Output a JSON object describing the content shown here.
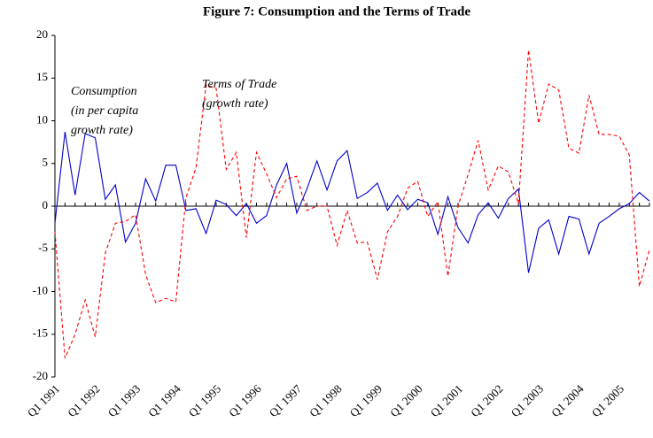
{
  "chart_data": {
    "type": "line",
    "title": "Figure 7: Consumption and the Terms of Trade",
    "categories": [
      "Q1 1991",
      null,
      null,
      null,
      "Q1 1992",
      null,
      null,
      null,
      "Q1 1993",
      null,
      null,
      null,
      "Q1 1994",
      null,
      null,
      null,
      "Q1 1995",
      null,
      null,
      null,
      "Q1 1996",
      null,
      null,
      null,
      "Q1 1997",
      null,
      null,
      null,
      "Q1 1998",
      null,
      null,
      null,
      "Q1 1999",
      null,
      null,
      null,
      "Q1 2000",
      null,
      null,
      null,
      "Q1 2001",
      null,
      null,
      null,
      "Q1 2002",
      null,
      null,
      null,
      "Q1 2003",
      null,
      null,
      null,
      "Q1 2004",
      null,
      null,
      null,
      "Q1 2005",
      null,
      null,
      null
    ],
    "series": [
      {
        "name": "Consumption",
        "color": "#0000cc",
        "dash": false,
        "values": [
          -2,
          8.7,
          1.3,
          8.5,
          8,
          0.8,
          2.5,
          -4.2,
          -2,
          3.2,
          0.6,
          4.8,
          4.8,
          -0.5,
          -0.3,
          -3.2,
          0.7,
          0.2,
          -1.1,
          0.3,
          -2,
          -1.1,
          2.5,
          5,
          -0.8,
          2,
          5.3,
          1.9,
          5.3,
          6.5,
          0.9,
          1.6,
          2.7,
          -0.5,
          1.3,
          -0.4,
          0.8,
          0.4,
          -3.3,
          1.1,
          -2.5,
          -4.3,
          -1,
          0.4,
          -1.4,
          0.9,
          2,
          -7.8,
          -2.6,
          -1.6,
          -5.6,
          -1.2,
          -1.5,
          -5.6,
          -2,
          -1.2,
          -0.3,
          0.3,
          1.6,
          0.6
        ]
      },
      {
        "name": "Terms of Trade",
        "color": "#ff0000",
        "dash": true,
        "values": [
          -3,
          -17.8,
          -15,
          -11,
          -15.3,
          -5.5,
          -2,
          -1.8,
          -1,
          -8,
          -11.3,
          -10.8,
          -11.2,
          1,
          4.5,
          14.2,
          13.8,
          4.3,
          6.3,
          -3.7,
          6.3,
          3.8,
          1,
          3.2,
          3.5,
          -0.5,
          0,
          0,
          -4.6,
          -0.5,
          -4.3,
          -4.2,
          -8.6,
          -3,
          -1.2,
          2.1,
          2.9,
          -1.2,
          0.5,
          -8.2,
          0,
          3.7,
          7.7,
          1.9,
          4.7,
          4,
          0.3,
          18.3,
          9.7,
          14.3,
          13.6,
          6.8,
          6.2,
          13,
          8.4,
          8.4,
          8.2,
          6,
          -9.4,
          -5.1
        ]
      }
    ],
    "annotations": [
      "Consumption",
      "(in per capita",
      "growth rate)",
      "Terms of Trade",
      "(growth rate)"
    ],
    "ylim": [
      -20,
      20
    ],
    "yticks": [
      -20,
      -15,
      -10,
      -5,
      0,
      5,
      10,
      15,
      20
    ]
  }
}
